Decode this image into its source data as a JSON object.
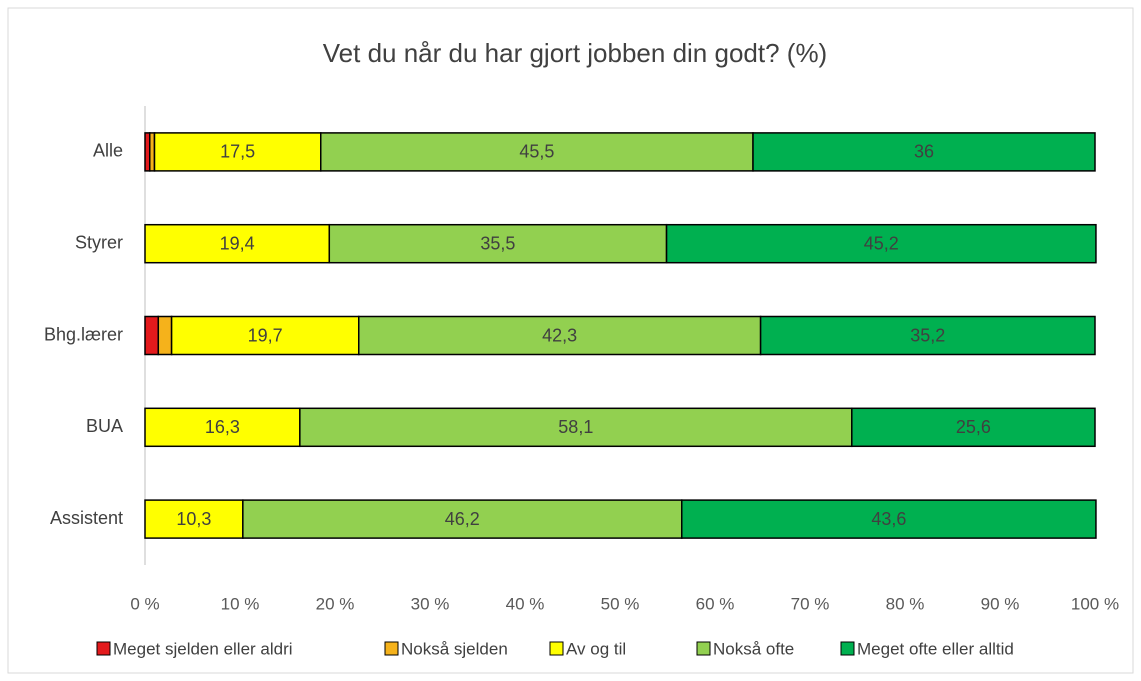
{
  "chart_data": {
    "type": "stacked_bar_horizontal",
    "title": "Vet du når du har gjort jobben din godt? (%)",
    "categories": [
      "Alle",
      "Styrer",
      "Bhg.lærer",
      "BUA",
      "Assistent"
    ],
    "series": [
      {
        "name": "Meget sjelden eller aldri",
        "color": "#e31a1c",
        "values": [
          0.5,
          0,
          1.4,
          0,
          0
        ]
      },
      {
        "name": "Nokså sjelden",
        "color": "#f5b21b",
        "values": [
          0.5,
          0,
          1.4,
          0,
          0
        ]
      },
      {
        "name": "Av og til",
        "color": "#ffff00",
        "values": [
          17.5,
          19.4,
          19.7,
          16.3,
          10.3
        ],
        "value_labels": [
          "17,5",
          "19,4",
          "19,7",
          "16,3",
          "10,3"
        ]
      },
      {
        "name": "Nokså ofte",
        "color": "#92d050",
        "values": [
          45.5,
          35.5,
          42.3,
          58.1,
          46.2
        ],
        "value_labels": [
          "45,5",
          "35,5",
          "42,3",
          "58,1",
          "46,2"
        ]
      },
      {
        "name": "Meget ofte eller alltid",
        "color": "#00b050",
        "values": [
          36,
          45.2,
          35.2,
          25.6,
          43.6
        ],
        "value_labels": [
          "36",
          "45,2",
          "35,2",
          "25,6",
          "43,6"
        ]
      }
    ],
    "xlim": [
      0,
      100
    ],
    "xticks": [
      {
        "value": 0,
        "label": "0 %"
      },
      {
        "value": 10,
        "label": "10 %"
      },
      {
        "value": 20,
        "label": "20 %"
      },
      {
        "value": 30,
        "label": "30 %"
      },
      {
        "value": 40,
        "label": "40 %"
      },
      {
        "value": 50,
        "label": "50 %"
      },
      {
        "value": 60,
        "label": "60 %"
      },
      {
        "value": 70,
        "label": "70 %"
      },
      {
        "value": 80,
        "label": "80 %"
      },
      {
        "value": 90,
        "label": "90 %"
      },
      {
        "value": 100,
        "label": "100 %"
      }
    ],
    "legend": "bottom"
  }
}
